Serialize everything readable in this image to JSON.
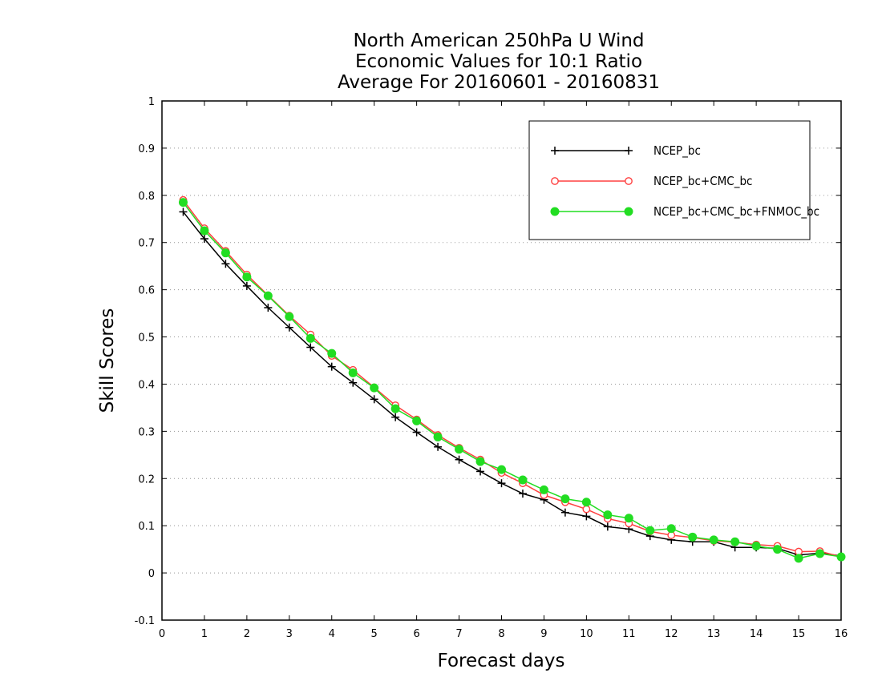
{
  "chart_data": {
    "type": "line",
    "title": [
      "North American 250hPa U Wind",
      "Economic Values for 10:1 Ratio",
      "Average For 20160601 - 20160831"
    ],
    "xlabel": "Forecast days",
    "ylabel": "Skill Scores",
    "xlim": [
      0,
      16
    ],
    "ylim": [
      -0.1,
      1
    ],
    "xticks": [
      0,
      1,
      2,
      3,
      4,
      5,
      6,
      7,
      8,
      9,
      10,
      11,
      12,
      13,
      14,
      15,
      16
    ],
    "yticks": [
      -0.1,
      0,
      0.1,
      0.2,
      0.3,
      0.4,
      0.5,
      0.6,
      0.7,
      0.8,
      0.9,
      1
    ],
    "ytick_labels": [
      "-0.1",
      "0",
      "0.1",
      "0.2",
      "0.3",
      "0.4",
      "0.5",
      "0.6",
      "0.7",
      "0.8",
      "0.9",
      "1"
    ],
    "grid": "horizontal-dotted",
    "legend_position": "top-right",
    "x": [
      0.5,
      1,
      1.5,
      2,
      2.5,
      3,
      3.5,
      4,
      4.5,
      5,
      5.5,
      6,
      6.5,
      7,
      7.5,
      8,
      8.5,
      9,
      9.5,
      10,
      10.5,
      11,
      11.5,
      12,
      12.5,
      13,
      13.5,
      14,
      14.5,
      15,
      15.5,
      16
    ],
    "series": [
      {
        "name": "NCEP_bc",
        "color": "#000000",
        "marker": "plus",
        "values": [
          0.765,
          0.708,
          0.655,
          0.608,
          0.562,
          0.52,
          0.478,
          0.437,
          0.403,
          0.368,
          0.33,
          0.298,
          0.267,
          0.24,
          0.215,
          0.19,
          0.168,
          0.155,
          0.128,
          0.12,
          0.098,
          0.093,
          0.078,
          0.07,
          0.066,
          0.066,
          0.054,
          0.054,
          0.052,
          0.038,
          0.042,
          0.036
        ]
      },
      {
        "name": "NCEP_bc+CMC_bc",
        "color": "#ff4040",
        "marker": "open-circle",
        "values": [
          0.79,
          0.73,
          0.682,
          0.632,
          0.588,
          0.545,
          0.505,
          0.46,
          0.43,
          0.393,
          0.355,
          0.325,
          0.292,
          0.265,
          0.24,
          0.212,
          0.19,
          0.165,
          0.15,
          0.135,
          0.115,
          0.105,
          0.088,
          0.08,
          0.075,
          0.068,
          0.065,
          0.06,
          0.057,
          0.045,
          0.046,
          0.034
        ]
      },
      {
        "name": "NCEP_bc+CMC_bc+FNMOC_bc",
        "color": "#22dd22",
        "marker": "filled-circle",
        "values": [
          0.785,
          0.725,
          0.678,
          0.627,
          0.587,
          0.543,
          0.497,
          0.465,
          0.424,
          0.392,
          0.348,
          0.322,
          0.288,
          0.262,
          0.236,
          0.219,
          0.197,
          0.176,
          0.157,
          0.15,
          0.123,
          0.116,
          0.09,
          0.094,
          0.076,
          0.07,
          0.066,
          0.057,
          0.05,
          0.031,
          0.041,
          0.034
        ]
      }
    ]
  }
}
